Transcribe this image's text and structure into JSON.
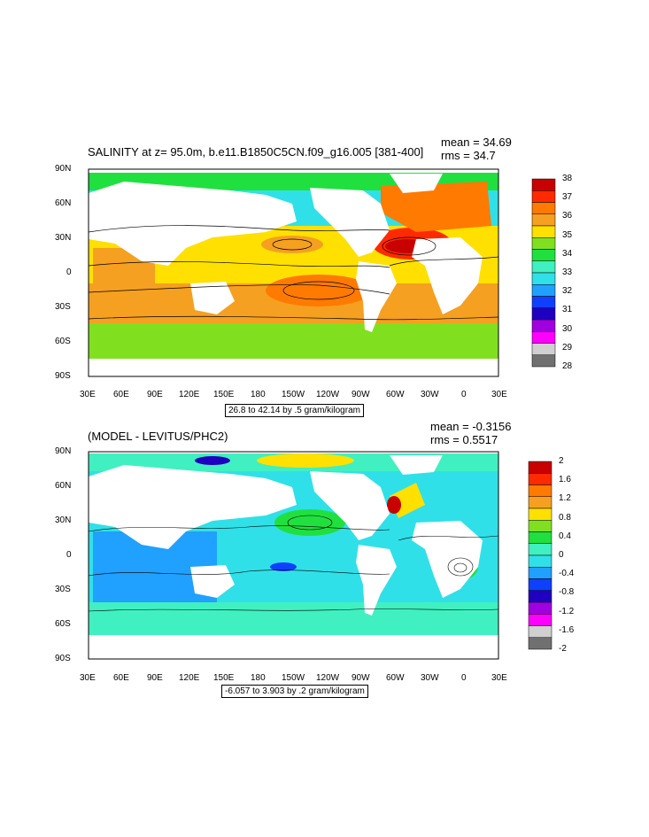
{
  "top": {
    "title": "SALINITY at z=  95.0m, b.e11.B1850C5CN.f09_g16.005 [381-400]",
    "mean": "mean = 34.69",
    "rms": "rms = 34.7",
    "contour_info": "26.8 to 42.14 by .5 gram/kilogram",
    "colorbar": {
      "labels": [
        "38",
        "37",
        "36",
        "35",
        "34",
        "33",
        "32",
        "31",
        "30",
        "29",
        "28"
      ],
      "colors": [
        "#c80000",
        "#ff2a00",
        "#ff7a00",
        "#f5a020",
        "#ffe000",
        "#80e020",
        "#20e040",
        "#40f0c0",
        "#30e0e8",
        "#20a0ff",
        "#1040ff",
        "#2000c0",
        "#a000e0",
        "#ff00ff",
        "#d0d0d0",
        "#707070"
      ]
    }
  },
  "bottom": {
    "title": "(MODEL - LEVITUS/PHC2)",
    "mean": "mean = -0.3156",
    "rms": "rms = 0.5517",
    "contour_info": "-6.057 to 3.903 by .2 gram/kilogram",
    "colorbar": {
      "labels": [
        "2",
        "1.6",
        "1.2",
        "0.8",
        "0.4",
        "0",
        "-0.4",
        "-0.8",
        "-1.2",
        "-1.6",
        "-2"
      ],
      "colors": [
        "#c80000",
        "#ff2a00",
        "#ff7a00",
        "#f5a020",
        "#ffe000",
        "#80e020",
        "#20e040",
        "#40f0c0",
        "#30e0e8",
        "#20a0ff",
        "#1040ff",
        "#2000c0",
        "#a000e0",
        "#ff00ff",
        "#d0d0d0",
        "#707070"
      ]
    }
  },
  "axes": {
    "lat_labels": [
      "90N",
      "60N",
      "30N",
      "0",
      "30S",
      "60S",
      "90S"
    ],
    "lon_labels": [
      "30E",
      "60E",
      "90E",
      "120E",
      "150E",
      "180",
      "150W",
      "120W",
      "90W",
      "60W",
      "30W",
      "0",
      "30E"
    ]
  }
}
